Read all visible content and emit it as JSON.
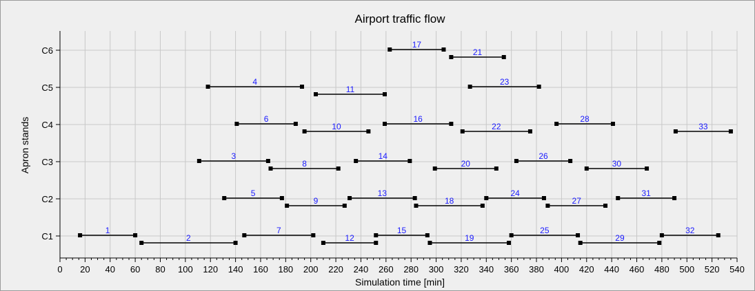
{
  "chart_data": {
    "type": "gantt",
    "title": "Airport traffic flow",
    "xlabel": "Simulation time [min]",
    "ylabel": "Apron stands",
    "xlim": [
      0,
      540
    ],
    "x_ticks": [
      "0",
      "20",
      "40",
      "60",
      "80",
      "100",
      "120",
      "140",
      "160",
      "180",
      "200",
      "220",
      "240",
      "260",
      "280",
      "300",
      "320",
      "340",
      "360",
      "380",
      "400",
      "420",
      "440",
      "460",
      "480",
      "500",
      "520",
      "540"
    ],
    "stands": [
      "C1",
      "C2",
      "C3",
      "C4",
      "C5",
      "C6"
    ],
    "grid": true,
    "colors": {
      "bar": "#000000",
      "label": "#1a1aff",
      "grid": "#c8c8c8",
      "background": "#efefef"
    },
    "flights": [
      {
        "id": "1",
        "stand": "C1",
        "lane": 0,
        "start": 16,
        "end": 60
      },
      {
        "id": "2",
        "stand": "C1",
        "lane": 1,
        "start": 65,
        "end": 140
      },
      {
        "id": "7",
        "stand": "C1",
        "lane": 0,
        "start": 147,
        "end": 202
      },
      {
        "id": "12",
        "stand": "C1",
        "lane": 1,
        "start": 210,
        "end": 252
      },
      {
        "id": "15",
        "stand": "C1",
        "lane": 0,
        "start": 252,
        "end": 293
      },
      {
        "id": "19",
        "stand": "C1",
        "lane": 1,
        "start": 295,
        "end": 358
      },
      {
        "id": "25",
        "stand": "C1",
        "lane": 0,
        "start": 360,
        "end": 413
      },
      {
        "id": "29",
        "stand": "C1",
        "lane": 1,
        "start": 415,
        "end": 478
      },
      {
        "id": "32",
        "stand": "C1",
        "lane": 0,
        "start": 480,
        "end": 525
      },
      {
        "id": "5",
        "stand": "C2",
        "lane": 0,
        "start": 131,
        "end": 177
      },
      {
        "id": "9",
        "stand": "C2",
        "lane": 1,
        "start": 181,
        "end": 227
      },
      {
        "id": "13",
        "stand": "C2",
        "lane": 0,
        "start": 231,
        "end": 283
      },
      {
        "id": "18",
        "stand": "C2",
        "lane": 1,
        "start": 284,
        "end": 337
      },
      {
        "id": "24",
        "stand": "C2",
        "lane": 0,
        "start": 340,
        "end": 386
      },
      {
        "id": "27",
        "stand": "C2",
        "lane": 1,
        "start": 389,
        "end": 435
      },
      {
        "id": "31",
        "stand": "C2",
        "lane": 0,
        "start": 445,
        "end": 490
      },
      {
        "id": "3",
        "stand": "C3",
        "lane": 0,
        "start": 111,
        "end": 166
      },
      {
        "id": "8",
        "stand": "C3",
        "lane": 1,
        "start": 168,
        "end": 222
      },
      {
        "id": "14",
        "stand": "C3",
        "lane": 0,
        "start": 236,
        "end": 279
      },
      {
        "id": "20",
        "stand": "C3",
        "lane": 1,
        "start": 299,
        "end": 348
      },
      {
        "id": "26",
        "stand": "C3",
        "lane": 0,
        "start": 364,
        "end": 407
      },
      {
        "id": "30",
        "stand": "C3",
        "lane": 1,
        "start": 420,
        "end": 468
      },
      {
        "id": "6",
        "stand": "C4",
        "lane": 0,
        "start": 141,
        "end": 188
      },
      {
        "id": "10",
        "stand": "C4",
        "lane": 1,
        "start": 195,
        "end": 246
      },
      {
        "id": "16",
        "stand": "C4",
        "lane": 0,
        "start": 259,
        "end": 312
      },
      {
        "id": "22",
        "stand": "C4",
        "lane": 1,
        "start": 321,
        "end": 375
      },
      {
        "id": "28",
        "stand": "C4",
        "lane": 0,
        "start": 396,
        "end": 441
      },
      {
        "id": "33",
        "stand": "C4",
        "lane": 1,
        "start": 491,
        "end": 535
      },
      {
        "id": "4",
        "stand": "C5",
        "lane": 0,
        "start": 118,
        "end": 193
      },
      {
        "id": "11",
        "stand": "C5",
        "lane": 1,
        "start": 204,
        "end": 259
      },
      {
        "id": "23",
        "stand": "C5",
        "lane": 0,
        "start": 327,
        "end": 382
      },
      {
        "id": "17",
        "stand": "C6",
        "lane": 0,
        "start": 263,
        "end": 306
      },
      {
        "id": "21",
        "stand": "C6",
        "lane": 1,
        "start": 312,
        "end": 354
      }
    ]
  }
}
